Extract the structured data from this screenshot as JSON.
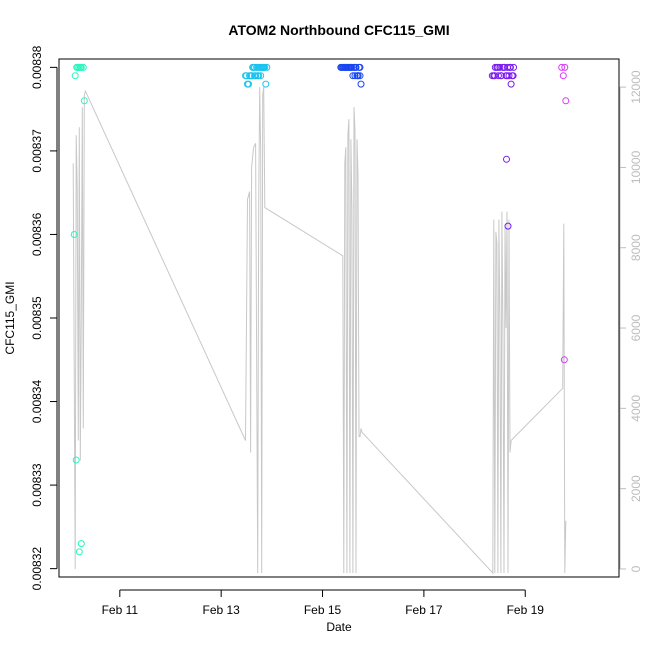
{
  "chart_data": {
    "type": "scatter",
    "title": "ATOM2 Northbound CFC115_GMI",
    "xlabel": "Date",
    "ylabel": "CFC115_GMI",
    "x_ticks": [
      "Feb 11",
      "Feb 13",
      "Feb 15",
      "Feb 17",
      "Feb 19"
    ],
    "x_tick_days": [
      11,
      13,
      15,
      17,
      19
    ],
    "xlim_days": [
      9.8,
      20.85
    ],
    "y_ticks": [
      "0.00832",
      "0.00833",
      "0.00834",
      "0.00835",
      "0.00836",
      "0.00837",
      "0.00838"
    ],
    "ylim": [
      0.008319,
      0.008381
    ],
    "y2_ticks": [
      "0",
      "2000",
      "4000",
      "6000",
      "8000",
      "10000",
      "12000"
    ],
    "y2lim": [
      -200,
      12700
    ],
    "colors": {
      "axis": "#000000",
      "secondary_axis": "#bdbdbd",
      "secondary_line": "#c8c8c8",
      "flight_1": "#2bf5bd",
      "flight_2": "#19c4ef",
      "flight_3": "#1a46f0",
      "flight_4": "#7a1cf0",
      "flight_5": "#d63cf5"
    },
    "series": [
      {
        "color_key": "flight_1",
        "x": [
          10.1,
          10.14,
          10.2,
          10.24,
          10.28,
          10.3,
          10.16,
          10.19,
          10.22,
          10.12,
          10.23,
          10.15,
          10.19,
          10.24
        ],
        "y": [
          0.00836,
          0.008333,
          0.008322,
          0.008323,
          0.00838,
          0.008376,
          0.00838,
          0.00838,
          0.00838,
          0.008379,
          0.00838,
          0.00838,
          0.00838,
          0.00838
        ]
      },
      {
        "color_key": "flight_2",
        "x": [
          13.48,
          13.52,
          13.56,
          13.6,
          13.64,
          13.68,
          13.72,
          13.76,
          13.8,
          13.84,
          13.88,
          13.5,
          13.54,
          13.58,
          13.62,
          13.66,
          13.7,
          13.74,
          13.78,
          13.82,
          13.86,
          13.9,
          13.6,
          13.66,
          13.72,
          13.78,
          13.84
        ],
        "y": [
          0.008379,
          0.008378,
          0.008379,
          0.008379,
          0.00838,
          0.008379,
          0.008379,
          0.00838,
          0.00838,
          0.00838,
          0.008378,
          0.008379,
          0.008378,
          0.008379,
          0.00838,
          0.008379,
          0.00838,
          0.008379,
          0.00838,
          0.00838,
          0.00838,
          0.00838,
          0.008379,
          0.00838,
          0.00838,
          0.008379,
          0.00838
        ]
      },
      {
        "color_key": "flight_3",
        "x": [
          15.36,
          15.38,
          15.4,
          15.42,
          15.44,
          15.46,
          15.48,
          15.5,
          15.52,
          15.54,
          15.56,
          15.58,
          15.6,
          15.62,
          15.64,
          15.66,
          15.68,
          15.7,
          15.72,
          15.74,
          15.45,
          15.55,
          15.65,
          15.62,
          15.7,
          15.74,
          15.76
        ],
        "y": [
          0.00838,
          0.00838,
          0.00838,
          0.00838,
          0.00838,
          0.00838,
          0.00838,
          0.00838,
          0.00838,
          0.00838,
          0.00838,
          0.00838,
          0.008379,
          0.00838,
          0.008379,
          0.00838,
          0.008379,
          0.008379,
          0.00838,
          0.008379,
          0.00838,
          0.00838,
          0.00838,
          0.00838,
          0.008379,
          0.00838,
          0.008378
        ]
      },
      {
        "color_key": "flight_4",
        "x": [
          18.35,
          18.38,
          18.41,
          18.44,
          18.47,
          18.5,
          18.53,
          18.56,
          18.59,
          18.62,
          18.65,
          18.68,
          18.71,
          18.74,
          18.77,
          18.4,
          18.46,
          18.52,
          18.58,
          18.64,
          18.7,
          18.76,
          18.63,
          18.66,
          18.72
        ],
        "y": [
          0.008379,
          0.008379,
          0.00838,
          0.00838,
          0.008379,
          0.00838,
          0.008379,
          0.00838,
          0.00838,
          0.008379,
          0.00838,
          0.008379,
          0.00838,
          0.008379,
          0.00838,
          0.008379,
          0.00838,
          0.008379,
          0.00838,
          0.008379,
          0.00838,
          0.008379,
          0.008369,
          0.008361,
          0.008378
        ]
      },
      {
        "color_key": "flight_5",
        "x": [
          19.72,
          19.75,
          19.78,
          19.8,
          19.77
        ],
        "y": [
          0.00838,
          0.008379,
          0.00838,
          0.008376,
          0.008345
        ]
      }
    ],
    "secondary_line": {
      "x": [
        10.08,
        10.12,
        10.14,
        10.16,
        10.18,
        10.2,
        10.22,
        10.24,
        10.26,
        10.28,
        10.3,
        10.32,
        13.48,
        13.52,
        13.56,
        13.58,
        13.6,
        13.64,
        13.68,
        13.72,
        13.74,
        13.76,
        13.78,
        13.8,
        13.82,
        13.84,
        13.86,
        15.4,
        15.42,
        15.44,
        15.46,
        15.48,
        15.5,
        15.52,
        15.54,
        15.56,
        15.58,
        15.6,
        15.62,
        15.64,
        15.66,
        15.68,
        15.7,
        15.72,
        15.74,
        15.76,
        15.78,
        18.36,
        18.38,
        18.4,
        18.42,
        18.44,
        18.46,
        18.48,
        18.5,
        18.52,
        18.54,
        18.56,
        18.58,
        18.6,
        18.62,
        18.64,
        18.66,
        18.68,
        18.7,
        18.72,
        19.74,
        19.76,
        19.78,
        19.8
      ],
      "y": [
        10100,
        0,
        10800,
        9500,
        3200,
        11000,
        2700,
        6400,
        11500,
        3500,
        11800,
        11900,
        3200,
        9200,
        9400,
        2900,
        10000,
        10500,
        10600,
        -100,
        9100,
        12000,
        10400,
        -100,
        11800,
        12000,
        9000,
        7800,
        -100,
        10100,
        10500,
        -100,
        10800,
        11200,
        -100,
        10700,
        9000,
        -100,
        11500,
        10900,
        -100,
        10700,
        9800,
        3300,
        3300,
        3500,
        3400,
        -100,
        8700,
        -100,
        8400,
        8100,
        -100,
        8700,
        6200,
        -100,
        8900,
        6000,
        -100,
        8500,
        6000,
        8900,
        -100,
        8700,
        2900,
        3200,
        4500,
        8600,
        -100,
        1200
      ]
    }
  }
}
